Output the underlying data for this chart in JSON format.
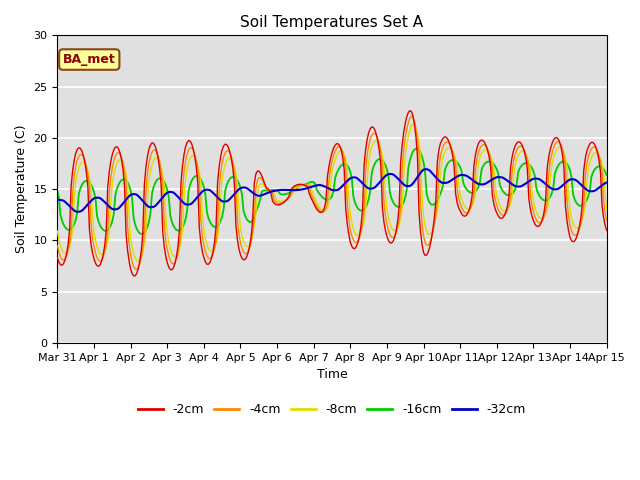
{
  "title": "Soil Temperatures Set A",
  "xlabel": "Time",
  "ylabel": "Soil Temperature (C)",
  "ylim": [
    0,
    30
  ],
  "yticks": [
    0,
    5,
    10,
    15,
    20,
    25,
    30
  ],
  "background_color": "#e0e0e0",
  "label_box_text": "BA_met",
  "series_colors": {
    "-2cm": "#dd0000",
    "-4cm": "#ff8800",
    "-8cm": "#dddd00",
    "-16cm": "#00cc00",
    "-32cm": "#0000cc"
  },
  "x_tick_labels": [
    "Mar 31",
    "Apr 1",
    "Apr 2",
    "Apr 3",
    "Apr 4",
    "Apr 5",
    "Apr 6",
    "Apr 7",
    "Apr 8",
    "Apr 9",
    "Apr 10",
    "Apr 11",
    "Apr 12",
    "Apr 13",
    "Apr 14",
    "Apr 15"
  ],
  "n_per_day": 24,
  "n_days": 15
}
